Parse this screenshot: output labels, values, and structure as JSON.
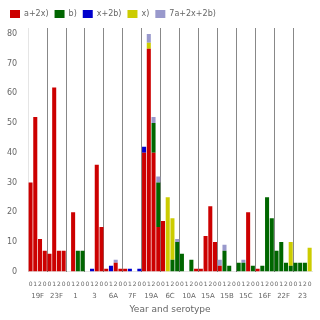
{
  "chart_data": {
    "type": "bar",
    "stacked": true,
    "xlabel": "Year and serotype",
    "groups": [
      "19F",
      "23F",
      "1",
      "3",
      "6A",
      "7F",
      "19A",
      "6C",
      "10A",
      "15A",
      "15B",
      "15C",
      "16F",
      "22F",
      "23"
    ],
    "categories": [
      "0",
      "1",
      "2",
      "0",
      "0",
      "1",
      "2",
      "0",
      "0",
      "1",
      "2",
      "0",
      "0",
      "1",
      "2",
      "0",
      "0",
      "1",
      "2",
      "0",
      "0",
      "1",
      "2",
      "0",
      "0",
      "1",
      "2",
      "0",
      "0",
      "1",
      "2",
      "0",
      "0",
      "1",
      "2",
      "0",
      "0",
      "1",
      "2",
      "0",
      "0",
      "1",
      "2",
      "0",
      "0",
      "1",
      "2",
      "0",
      "0",
      "1",
      "2",
      "0",
      "0",
      "1",
      "2",
      "0",
      "0",
      "1",
      "2",
      "0"
    ],
    "series": [
      {
        "name": "a+2x)",
        "color": "#cc0000",
        "values": [
          30,
          52,
          11,
          7,
          6,
          62,
          7,
          7,
          null,
          20,
          null,
          null,
          null,
          null,
          36,
          15,
          1,
          null,
          3,
          1,
          1,
          null,
          null,
          null,
          40,
          75,
          40,
          15,
          17,
          null,
          null,
          null,
          null,
          null,
          null,
          1,
          1,
          12,
          22,
          10,
          2,
          null,
          null,
          null,
          null,
          null,
          20,
          null,
          1,
          null,
          null,
          null,
          null,
          null,
          null,
          null,
          null,
          null,
          null,
          null
        ]
      },
      {
        "name": "b)",
        "color": "#006600",
        "values": [
          null,
          null,
          null,
          null,
          null,
          null,
          null,
          null,
          null,
          null,
          7,
          7,
          null,
          null,
          null,
          null,
          null,
          null,
          null,
          null,
          null,
          null,
          null,
          null,
          null,
          null,
          10,
          15,
          null,
          null,
          4,
          10,
          6,
          null,
          4,
          null,
          null,
          null,
          null,
          null,
          null,
          7,
          2,
          null,
          3,
          3,
          null,
          2,
          null,
          2,
          25,
          18,
          7,
          10,
          3,
          2,
          3,
          3,
          3,
          null
        ]
      },
      {
        "name": "x+2b)",
        "color": "#0000cc",
        "values": [
          null,
          null,
          null,
          null,
          null,
          null,
          null,
          null,
          null,
          null,
          null,
          null,
          null,
          1,
          null,
          null,
          null,
          2,
          null,
          null,
          null,
          1,
          null,
          1,
          2,
          null,
          null,
          null,
          null,
          null,
          null,
          null,
          null,
          null,
          null,
          null,
          null,
          null,
          null,
          null,
          null,
          null,
          null,
          null,
          null,
          null,
          null,
          null,
          null,
          null,
          null,
          null,
          null,
          null,
          null,
          null,
          null,
          null,
          null,
          null
        ]
      },
      {
        "name": "x)",
        "color": "#cccc00",
        "values": [
          null,
          null,
          null,
          null,
          null,
          null,
          null,
          null,
          null,
          null,
          null,
          null,
          null,
          null,
          null,
          null,
          null,
          null,
          null,
          null,
          null,
          null,
          null,
          null,
          null,
          2,
          null,
          null,
          null,
          25,
          14,
          null,
          null,
          null,
          null,
          null,
          null,
          null,
          null,
          null,
          null,
          null,
          null,
          null,
          null,
          null,
          null,
          null,
          null,
          null,
          null,
          null,
          null,
          null,
          null,
          8,
          null,
          null,
          null,
          8
        ]
      },
      {
        "name": "7a+2x+2b)",
        "color": "#9999cc",
        "values": [
          null,
          null,
          null,
          null,
          null,
          null,
          null,
          null,
          null,
          null,
          null,
          null,
          null,
          null,
          null,
          null,
          null,
          null,
          1,
          null,
          null,
          null,
          null,
          null,
          null,
          3,
          2,
          2,
          null,
          null,
          null,
          1,
          null,
          null,
          null,
          null,
          null,
          null,
          null,
          null,
          2,
          2,
          null,
          null,
          null,
          1,
          null,
          null,
          null,
          null,
          null,
          null,
          null,
          null,
          null,
          null,
          null,
          null,
          null,
          null
        ]
      }
    ],
    "ylim": [
      0,
      82
    ],
    "yticks": [
      0,
      10,
      20,
      30,
      40,
      50,
      60,
      70,
      80
    ],
    "grid": false,
    "legend": "upper left"
  }
}
